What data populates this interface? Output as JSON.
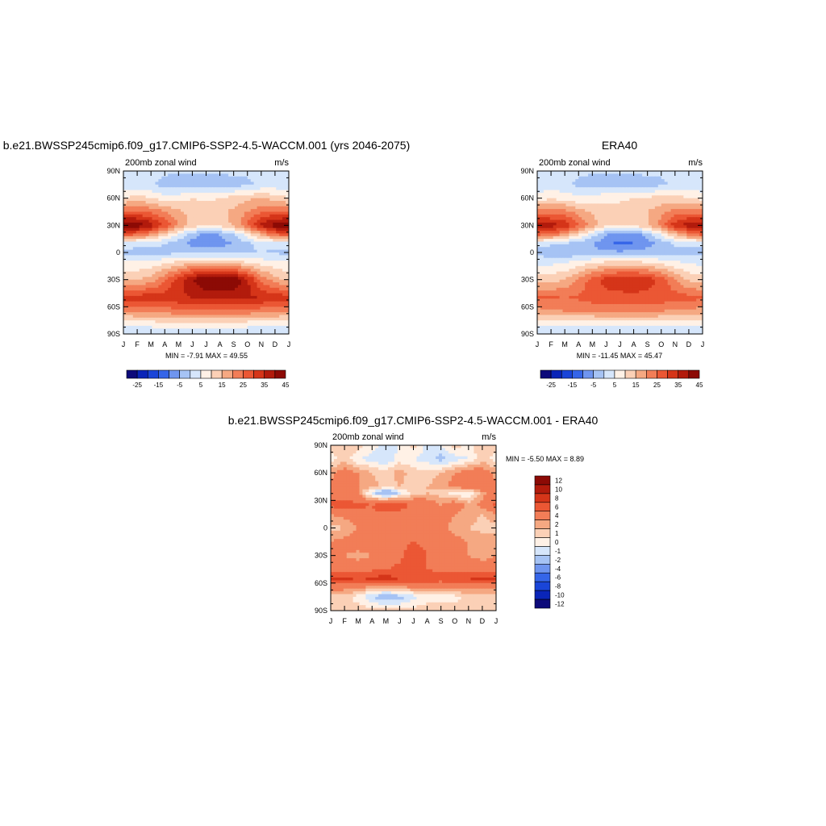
{
  "panels": [
    {
      "title": "b.e21.BWSSP245cmip6.f09_g17.CMIP6-SSP2-4.5-WACCM.001 (yrs 2046-2075)",
      "left_label": "200mb zonal wind",
      "right_label": "m/s",
      "minmax": "MIN =  -7.91 MAX =  49.55"
    },
    {
      "title": "ERA40",
      "left_label": "200mb zonal wind",
      "right_label": "m/s",
      "minmax": "MIN = -11.45 MAX =  45.47"
    },
    {
      "title": "b.e21.BWSSP245cmip6.f09_g17.CMIP6-SSP2-4.5-WACCM.001 - ERA40",
      "left_label": "200mb zonal wind",
      "right_label": "m/s",
      "minmax": "MIN =  -5.50 MAX =   8.89"
    }
  ],
  "colorbars": {
    "field_labels": [
      "-25",
      "-15",
      "-5",
      "5",
      "15",
      "25",
      "35",
      "45"
    ],
    "field_colors": [
      "#0d0a7a",
      "#0a25b8",
      "#1a45d8",
      "#3565e8",
      "#6f95ef",
      "#a6c3f4",
      "#d6e6fb",
      "#fff1e6",
      "#fbd0b6",
      "#f5a882",
      "#f27d57",
      "#eb5734",
      "#d53519",
      "#b21b0c",
      "#8c0a05"
    ],
    "diff_labels": [
      "12",
      "10",
      "8",
      "6",
      "4",
      "2",
      "1",
      "0",
      "-1",
      "-2",
      "-4",
      "-6",
      "-8",
      "-10",
      "-12"
    ],
    "diff_colors": [
      "#8c0a05",
      "#b21b0c",
      "#d53519",
      "#eb5734",
      "#f27d57",
      "#f5a882",
      "#fbd0b6",
      "#fff1e6",
      "#d6e6fb",
      "#a6c3f4",
      "#6f95ef",
      "#3565e8",
      "#1a45d8",
      "#0a25b8",
      "#0d0a7a"
    ]
  },
  "chart_data": [
    {
      "type": "heatmap",
      "title": "b.e21.BWSSP245cmip6.f09_g17.CMIP6-SSP2-4.5-WACCM.001 (yrs 2046-2075)",
      "variable": "200mb zonal wind",
      "units": "m/s",
      "x_ticks": [
        "J",
        "F",
        "M",
        "A",
        "M",
        "J",
        "J",
        "A",
        "S",
        "O",
        "N",
        "D",
        "J"
      ],
      "y_ticks": [
        "90N",
        "60N",
        "30N",
        "0",
        "30S",
        "60S",
        "90S"
      ],
      "levels": [
        -25,
        -20,
        -15,
        -10,
        -5,
        0,
        5,
        10,
        15,
        20,
        25,
        30,
        35,
        40,
        45
      ],
      "min": -7.91,
      "max": 49.55,
      "values_by_latitude_ms": {
        "90": [
          2,
          2,
          2,
          1,
          1,
          1,
          1,
          1,
          1,
          1,
          2,
          2,
          2
        ],
        "75": [
          0,
          2,
          1,
          -2,
          -3,
          -3,
          -3,
          -3,
          -2,
          -1,
          1,
          2,
          0
        ],
        "60": [
          10,
          12,
          10,
          7,
          8,
          10,
          9,
          10,
          12,
          14,
          15,
          13,
          10
        ],
        "45": [
          25,
          26,
          24,
          20,
          16,
          13,
          13,
          14,
          16,
          20,
          24,
          26,
          25
        ],
        "30": [
          46,
          44,
          38,
          29,
          20,
          13,
          11,
          12,
          16,
          26,
          36,
          43,
          46
        ],
        "20": [
          28,
          25,
          20,
          12,
          5,
          -3,
          -6,
          -5,
          -1,
          8,
          17,
          25,
          28
        ],
        "10": [
          3,
          2,
          2,
          0,
          -3,
          -7,
          -8,
          -7,
          -5,
          -1,
          2,
          3,
          3
        ],
        "0": [
          -1,
          -2,
          -2,
          -2,
          -1,
          -2,
          -2,
          -2,
          -1,
          -1,
          0,
          -1,
          -1
        ],
        "-10": [
          5,
          5,
          6,
          8,
          10,
          12,
          13,
          12,
          11,
          9,
          7,
          6,
          5
        ],
        "-30": [
          14,
          15,
          17,
          24,
          33,
          40,
          46,
          48,
          45,
          36,
          24,
          17,
          14
        ],
        "-50": [
          32,
          33,
          33,
          33,
          34,
          35,
          36,
          36,
          36,
          36,
          35,
          34,
          32
        ],
        "-65": [
          20,
          21,
          22,
          22,
          23,
          24,
          24,
          24,
          24,
          23,
          22,
          21,
          20
        ],
        "-80": [
          5,
          5,
          6,
          7,
          8,
          8,
          8,
          8,
          7,
          6,
          5,
          5,
          5
        ],
        "-90": [
          2,
          2,
          2,
          2,
          2,
          2,
          2,
          2,
          2,
          2,
          2,
          2,
          2
        ]
      }
    },
    {
      "type": "heatmap",
      "title": "ERA40",
      "variable": "200mb zonal wind",
      "units": "m/s",
      "x_ticks": [
        "J",
        "F",
        "M",
        "A",
        "M",
        "J",
        "J",
        "A",
        "S",
        "O",
        "N",
        "D",
        "J"
      ],
      "y_ticks": [
        "90N",
        "60N",
        "30N",
        "0",
        "30S",
        "60S",
        "90S"
      ],
      "levels": [
        -25,
        -20,
        -15,
        -10,
        -5,
        0,
        5,
        10,
        15,
        20,
        25,
        30,
        35,
        40,
        45
      ],
      "min": -11.45,
      "max": 45.47,
      "values_by_latitude_ms": {
        "90": [
          1,
          1,
          1,
          1,
          1,
          1,
          1,
          1,
          1,
          1,
          1,
          1,
          1
        ],
        "75": [
          1,
          2,
          1,
          -1,
          -3,
          -3,
          -3,
          -3,
          -2,
          -1,
          1,
          2,
          1
        ],
        "60": [
          8,
          9,
          8,
          6,
          7,
          9,
          9,
          10,
          11,
          12,
          12,
          10,
          8
        ],
        "45": [
          22,
          22,
          22,
          18,
          14,
          12,
          12,
          13,
          15,
          18,
          22,
          23,
          22
        ],
        "30": [
          40,
          38,
          34,
          26,
          18,
          12,
          10,
          11,
          15,
          23,
          33,
          38,
          40
        ],
        "20": [
          27,
          24,
          19,
          11,
          3,
          -5,
          -8,
          -7,
          -3,
          6,
          15,
          23,
          27
        ],
        "10": [
          2,
          1,
          0,
          -2,
          -5,
          -9,
          -11,
          -10,
          -7,
          -3,
          1,
          2,
          2
        ],
        "0": [
          -2,
          -3,
          -4,
          -4,
          -4,
          -4,
          -4,
          -4,
          -3,
          -2,
          -2,
          -2,
          -2
        ],
        "-10": [
          3,
          3,
          4,
          6,
          8,
          10,
          11,
          10,
          9,
          7,
          5,
          4,
          3
        ],
        "-30": [
          12,
          13,
          15,
          21,
          27,
          32,
          34,
          35,
          33,
          28,
          20,
          14,
          12
        ],
        "-50": [
          26,
          26,
          25,
          26,
          28,
          28,
          28,
          28,
          28,
          28,
          28,
          27,
          26
        ],
        "-65": [
          18,
          19,
          20,
          20,
          20,
          21,
          21,
          21,
          21,
          20,
          19,
          18,
          18
        ],
        "-80": [
          5,
          5,
          5,
          6,
          6,
          6,
          6,
          6,
          6,
          6,
          5,
          5,
          5
        ],
        "-90": [
          1,
          1,
          1,
          1,
          1,
          1,
          1,
          1,
          1,
          1,
          1,
          1,
          1
        ]
      }
    },
    {
      "type": "heatmap",
      "title": "b.e21.BWSSP245cmip6.f09_g17.CMIP6-SSP2-4.5-WACCM.001 - ERA40",
      "variable": "200mb zonal wind",
      "units": "m/s",
      "x_ticks": [
        "J",
        "F",
        "M",
        "A",
        "M",
        "J",
        "J",
        "A",
        "S",
        "O",
        "N",
        "D",
        "J"
      ],
      "y_ticks": [
        "90N",
        "60N",
        "30N",
        "0",
        "30S",
        "60S",
        "90S"
      ],
      "levels": [
        -12,
        -10,
        -8,
        -6,
        -4,
        -2,
        -1,
        0,
        1,
        2,
        4,
        6,
        8,
        10,
        12
      ],
      "min": -5.5,
      "max": 8.89,
      "values_by_latitude_ms": {
        "90": [
          0.5,
          1.0,
          0.5,
          -0.5,
          -1.5,
          -1.0,
          0.5,
          -1.5,
          -1.0,
          0.5,
          -0.5,
          1.0,
          0.5
        ],
        "75": [
          -0.5,
          0.5,
          -1.0,
          -1.5,
          -2.0,
          -0.5,
          -1.0,
          -1.5,
          -2.5,
          -1.5,
          -1.0,
          0.5,
          -0.5
        ],
        "60": [
          1.5,
          3.0,
          2.0,
          1.0,
          0.5,
          1.5,
          0.5,
          0.5,
          1.0,
          2.0,
          3.0,
          3.0,
          1.5
        ],
        "45": [
          2.5,
          3.5,
          2.0,
          1.5,
          0.5,
          1.0,
          0.5,
          1.0,
          1.5,
          2.5,
          3.0,
          3.5,
          2.5
        ],
        "38": [
          3.0,
          3.0,
          2.0,
          -1.5,
          -4.5,
          -1.5,
          0.5,
          1.0,
          0.5,
          -0.5,
          -1.0,
          1.5,
          3.0
        ],
        "25": [
          4.5,
          5.0,
          4.5,
          4.0,
          6.0,
          5.0,
          3.5,
          3.0,
          2.0,
          3.0,
          1.5,
          2.5,
          4.5
        ],
        "15": [
          2.0,
          2.5,
          3.0,
          3.5,
          3.5,
          3.5,
          3.0,
          2.5,
          3.0,
          2.0,
          1.5,
          1.0,
          2.0
        ],
        "0": [
          0.5,
          1.0,
          2.0,
          2.5,
          2.5,
          2.0,
          2.0,
          2.5,
          2.5,
          1.5,
          1.0,
          0.5,
          0.5
        ],
        "-15": [
          2.0,
          2.5,
          3.0,
          3.0,
          3.5,
          3.5,
          4.0,
          3.5,
          2.5,
          2.5,
          2.0,
          2.0,
          2.0
        ],
        "-30": [
          2.0,
          2.0,
          1.5,
          2.0,
          2.5,
          3.5,
          5.0,
          4.0,
          3.0,
          2.5,
          2.0,
          1.5,
          2.0
        ],
        "-45": [
          2.5,
          3.0,
          3.0,
          3.5,
          4.0,
          4.5,
          4.5,
          4.0,
          3.5,
          3.0,
          3.0,
          3.0,
          2.5
        ],
        "-55": [
          6.5,
          6.5,
          6.0,
          6.5,
          7.0,
          6.0,
          6.0,
          5.5,
          5.0,
          5.5,
          6.0,
          7.0,
          6.5
        ],
        "-65": [
          2.5,
          2.5,
          2.0,
          1.5,
          1.0,
          1.5,
          2.0,
          2.0,
          2.0,
          2.5,
          2.0,
          2.0,
          2.5
        ],
        "-75": [
          0.5,
          0.5,
          -0.5,
          -2.0,
          -3.0,
          -2.5,
          -1.5,
          -0.5,
          -0.5,
          -0.5,
          0.5,
          0.5,
          0.5
        ],
        "-90": [
          0.5,
          0.5,
          0.5,
          0.5,
          0.5,
          0.5,
          0.5,
          0.5,
          0.5,
          0.5,
          0.5,
          0.5,
          0.5
        ]
      }
    }
  ]
}
